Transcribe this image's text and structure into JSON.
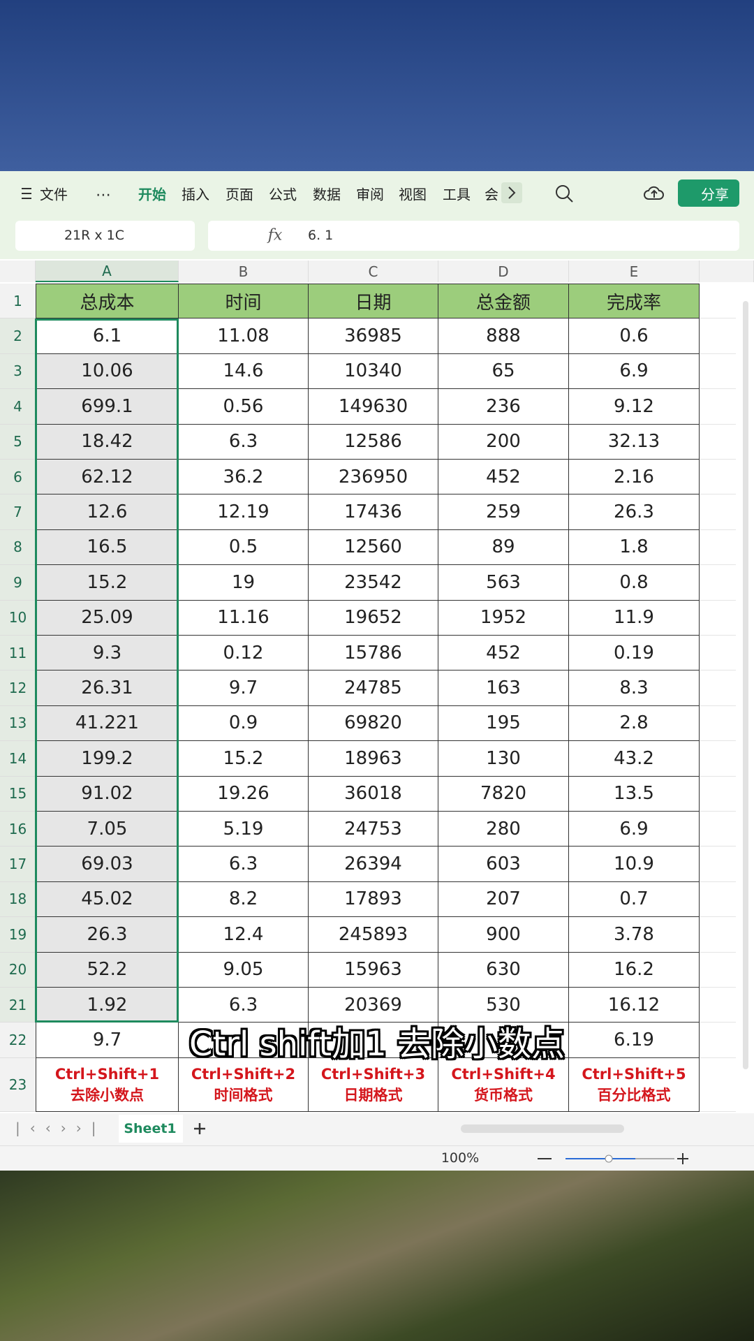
{
  "toolbar": {
    "file": "文件",
    "tabs": [
      "开始",
      "插入",
      "页面",
      "公式",
      "数据",
      "审阅",
      "视图",
      "工具",
      "会"
    ],
    "share": "分享"
  },
  "formula_bar": {
    "name_box": "21R x 1C",
    "fx": "fx",
    "content": "6. 1"
  },
  "sheet": {
    "columns": [
      "A",
      "B",
      "C",
      "D",
      "E"
    ],
    "row_numbers": [
      1,
      2,
      3,
      4,
      5,
      6,
      7,
      8,
      9,
      10,
      11,
      12,
      13,
      14,
      15,
      16,
      17,
      18,
      19,
      20,
      21,
      22,
      23
    ],
    "header": [
      "总成本",
      "时间",
      "日期",
      "总金额",
      "完成率"
    ],
    "rows": [
      [
        6.1,
        11.08,
        36985,
        888,
        0.6
      ],
      [
        10.06,
        14.6,
        10340,
        65,
        6.9
      ],
      [
        699.1,
        0.56,
        149630,
        236,
        9.12
      ],
      [
        18.42,
        6.3,
        12586,
        200,
        32.13
      ],
      [
        62.12,
        36.2,
        236950,
        452,
        2.16
      ],
      [
        12.6,
        12.19,
        17436,
        259,
        26.3
      ],
      [
        16.5,
        0.5,
        12560,
        89,
        1.8
      ],
      [
        15.2,
        19,
        23542,
        563,
        0.8
      ],
      [
        25.09,
        11.16,
        19652,
        1952,
        11.9
      ],
      [
        9.3,
        0.12,
        15786,
        452,
        0.19
      ],
      [
        26.31,
        9.7,
        24785,
        163,
        8.3
      ],
      [
        41.221,
        0.9,
        69820,
        195,
        2.8
      ],
      [
        199.2,
        15.2,
        18963,
        130,
        43.2
      ],
      [
        91.02,
        19.26,
        36018,
        7820,
        13.5
      ],
      [
        7.05,
        5.19,
        24753,
        280,
        6.9
      ],
      [
        69.03,
        6.3,
        26394,
        603,
        10.9
      ],
      [
        45.02,
        8.2,
        17893,
        207,
        0.7
      ],
      [
        26.3,
        12.4,
        245893,
        900,
        3.78
      ],
      [
        52.2,
        9.05,
        15963,
        630,
        16.2
      ],
      [
        1.92,
        6.3,
        20369,
        530,
        16.12
      ]
    ],
    "row_22": {
      "A": 9.7,
      "E": 6.19
    },
    "shortcuts": [
      [
        "Ctrl+Shift+1",
        "去除小数点"
      ],
      [
        "Ctrl+Shift+2",
        "时间格式"
      ],
      [
        "Ctrl+Shift+3",
        "日期格式"
      ],
      [
        "Ctrl+Shift+4",
        "货币格式"
      ],
      [
        "Ctrl+Shift+5",
        "百分比格式"
      ]
    ]
  },
  "tabs_bar": {
    "sheet": "Sheet1"
  },
  "status_bar": {
    "zoom": "100%"
  },
  "subtitle": "Ctrl shift加1 去除小数点"
}
